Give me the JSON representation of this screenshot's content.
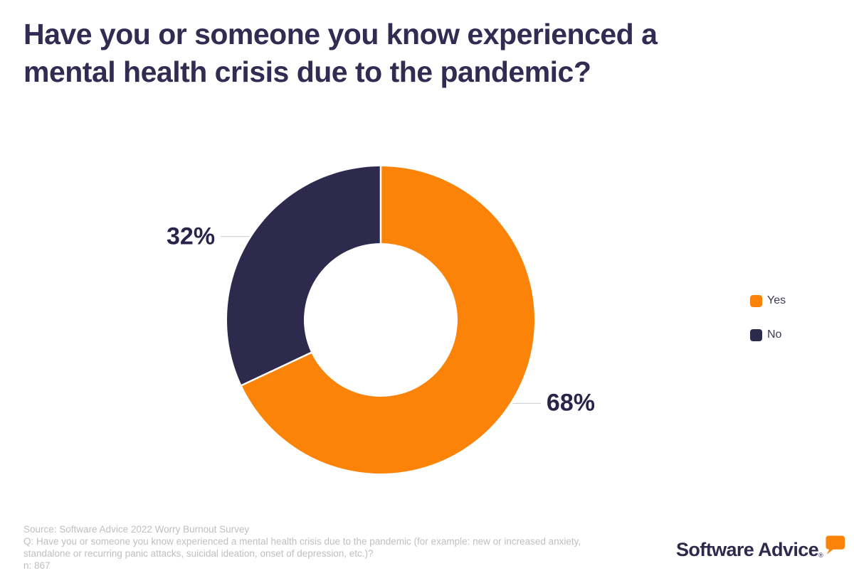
{
  "header": {
    "title_lines": [
      "Have you or someone you know experienced a",
      "mental health crisis due to the pandemic?"
    ]
  },
  "chart_data": {
    "type": "pie",
    "donut": true,
    "title": "Have you or someone you know experienced a mental health crisis due to the pandemic?",
    "labels": [
      "Yes",
      "No"
    ],
    "values": [
      68,
      32
    ],
    "data_labels": [
      "68%",
      "32%"
    ],
    "colors": [
      "#FA8308",
      "#2D2A4E"
    ],
    "start_angle_deg": 0,
    "direction": "clockwise",
    "legend_position": "right"
  },
  "footnote": {
    "lines": [
      "Source: Software Advice 2022 Worry Burnout Survey",
      "Q: Have you or someone you know experienced a mental health crisis due to the pandemic (for example: new or increased anxiety,",
      "standalone or recurring panic attacks, suicidal ideation, onset of depression, etc.)?",
      "n: 867"
    ]
  },
  "logo": {
    "text": "Software Advice",
    "registered_mark": "®",
    "bubble_color": "#FA8308"
  },
  "colors": {
    "title": "#322B52",
    "data_label": "#29244A",
    "footnote": "#BFBFBF",
    "leader_line": "#CCCCCC",
    "separator": "#FFFFFF"
  }
}
